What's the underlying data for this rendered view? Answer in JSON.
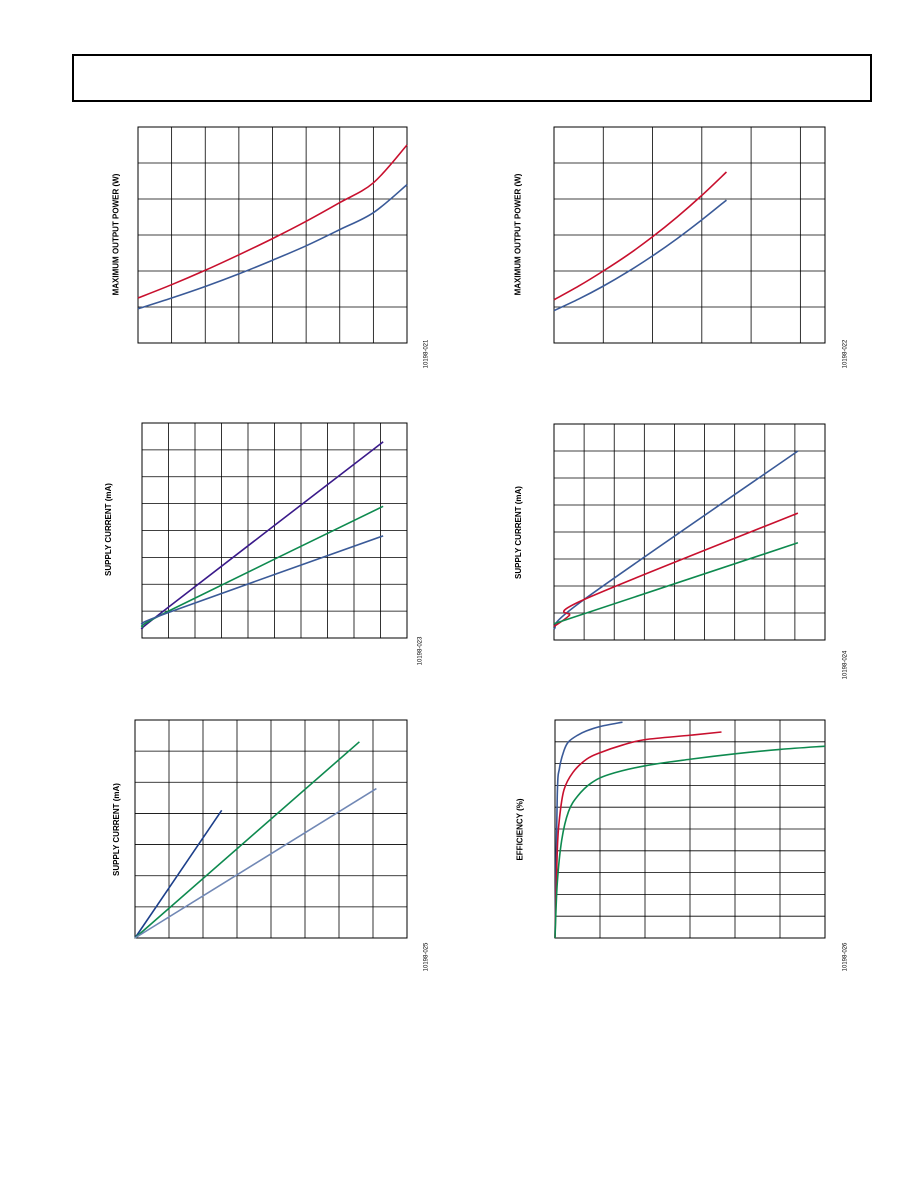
{
  "page": {
    "header": ""
  },
  "colors": {
    "red": "#c8102e",
    "blue": "#3a5a98",
    "green": "#0e8a4f",
    "purple": "#3a1a8a",
    "navy": "#1c3f8a",
    "steel": "#7188b5",
    "grid": "#000000"
  },
  "chart_data": [
    {
      "type": "line",
      "id": "chart-1",
      "title": "",
      "xlabel": "",
      "ylabel": "MAXIMUM OUTPUT POWER (W)",
      "figure_id": "10198-021",
      "xlim": [
        0,
        8
      ],
      "ylim": [
        0,
        6
      ],
      "x_gridlines": 8,
      "y_gridlines": 6,
      "grid": true,
      "series": [
        {
          "color": "#c8102e",
          "x": [
            0,
            1,
            2,
            3,
            4,
            5,
            6,
            7,
            8
          ],
          "y": [
            1.25,
            1.62,
            2.02,
            2.45,
            2.9,
            3.38,
            3.9,
            4.45,
            5.5
          ]
        },
        {
          "color": "#3a5a98",
          "x": [
            0,
            1,
            2,
            3,
            4,
            5,
            6,
            7,
            8
          ],
          "y": [
            0.95,
            1.25,
            1.57,
            1.92,
            2.3,
            2.7,
            3.15,
            3.62,
            4.4
          ]
        }
      ]
    },
    {
      "type": "line",
      "id": "chart-2",
      "title": "",
      "xlabel": "",
      "ylabel": "MAXIMUM OUTPUT POWER (W)",
      "figure_id": "10198-022",
      "xlim": [
        0,
        5.5
      ],
      "ylim": [
        0,
        6
      ],
      "x_gridlines": 5.5,
      "y_gridlines": 6,
      "grid": true,
      "series": [
        {
          "color": "#c8102e",
          "x": [
            0,
            0.5,
            1,
            1.5,
            2,
            2.5,
            3,
            3.5
          ],
          "y": [
            1.2,
            1.58,
            2.0,
            2.45,
            2.95,
            3.5,
            4.1,
            4.75
          ]
        },
        {
          "color": "#3a5a98",
          "x": [
            0,
            0.5,
            1,
            1.5,
            2,
            2.5,
            3,
            3.5
          ],
          "y": [
            0.9,
            1.22,
            1.58,
            1.98,
            2.42,
            2.9,
            3.42,
            3.97
          ]
        }
      ]
    },
    {
      "type": "line",
      "id": "chart-3",
      "title": "",
      "xlabel": "",
      "ylabel": "SUPPLY CURRENT (mA)",
      "figure_id": "10198-023",
      "xlim": [
        0,
        10
      ],
      "ylim": [
        0,
        8
      ],
      "x_gridlines": 10,
      "y_gridlines": 8,
      "grid": true,
      "series": [
        {
          "color": "#3a1a8a",
          "x": [
            0,
            1,
            9.1
          ],
          "y": [
            0.35,
            1.15,
            7.3
          ]
        },
        {
          "color": "#0e8a4f",
          "x": [
            0,
            1,
            9.1
          ],
          "y": [
            0.4,
            1.0,
            4.9
          ]
        },
        {
          "color": "#3a5a98",
          "x": [
            0,
            1,
            9.1
          ],
          "y": [
            0.5,
            0.95,
            3.8
          ]
        }
      ]
    },
    {
      "type": "line",
      "id": "chart-4",
      "title": "",
      "xlabel": "",
      "ylabel": "SUPPLY CURRENT (mA)",
      "figure_id": "10198-024",
      "xlim": [
        0,
        9
      ],
      "ylim": [
        0,
        8
      ],
      "x_gridlines": 9,
      "y_gridlines": 8,
      "grid": true,
      "series": [
        {
          "color": "#3a5a98",
          "x": [
            0,
            1,
            8.1
          ],
          "y": [
            0.4,
            1.5,
            7.0
          ]
        },
        {
          "color": "#c8102e",
          "x": [
            0,
            0.5,
            1,
            8.1
          ],
          "y": [
            0.5,
            0.9,
            1.5,
            4.7
          ]
        },
        {
          "color": "#0e8a4f",
          "x": [
            0,
            8.1
          ],
          "y": [
            0.6,
            3.6
          ]
        }
      ]
    },
    {
      "type": "line",
      "id": "chart-5",
      "title": "",
      "xlabel": "",
      "ylabel": "SUPPLY CURRENT (mA)",
      "figure_id": "10198-025",
      "xlim": [
        0,
        8
      ],
      "ylim": [
        0,
        7
      ],
      "x_gridlines": 8,
      "y_gridlines": 7,
      "grid": true,
      "series": [
        {
          "color": "#1c3f8a",
          "x": [
            0,
            2.55
          ],
          "y": [
            0,
            4.1
          ]
        },
        {
          "color": "#0e8a4f",
          "x": [
            0,
            6.6
          ],
          "y": [
            0,
            6.3
          ]
        },
        {
          "color": "#7188b5",
          "x": [
            0,
            7.1
          ],
          "y": [
            0,
            4.8
          ]
        }
      ]
    },
    {
      "type": "line",
      "id": "chart-6",
      "title": "",
      "xlabel": "",
      "ylabel": "EFFICIENCY (%)",
      "figure_id": "10198-026",
      "xlim": [
        0,
        6
      ],
      "ylim": [
        0,
        10
      ],
      "x_gridlines": 6,
      "y_gridlines": 10,
      "grid": true,
      "series": [
        {
          "color": "#3a5a98",
          "x": [
            0,
            0.05,
            0.1,
            0.2,
            0.3,
            0.5,
            0.7,
            1.0,
            1.5
          ],
          "y": [
            0,
            6.5,
            7.8,
            8.6,
            9.0,
            9.3,
            9.5,
            9.7,
            9.9
          ]
        },
        {
          "color": "#c8102e",
          "x": [
            0,
            0.05,
            0.1,
            0.2,
            0.4,
            0.7,
            1.0,
            1.5,
            2.0,
            3.0,
            3.7
          ],
          "y": [
            0,
            4.0,
            5.5,
            6.8,
            7.6,
            8.2,
            8.5,
            8.85,
            9.1,
            9.3,
            9.45
          ]
        },
        {
          "color": "#0e8a4f",
          "x": [
            0,
            0.05,
            0.15,
            0.3,
            0.5,
            0.8,
            1.2,
            2.0,
            3.0,
            4.0,
            5.0,
            6.0
          ],
          "y": [
            0,
            2.5,
            4.5,
            5.8,
            6.5,
            7.1,
            7.5,
            7.9,
            8.2,
            8.45,
            8.65,
            8.8
          ]
        }
      ]
    }
  ]
}
